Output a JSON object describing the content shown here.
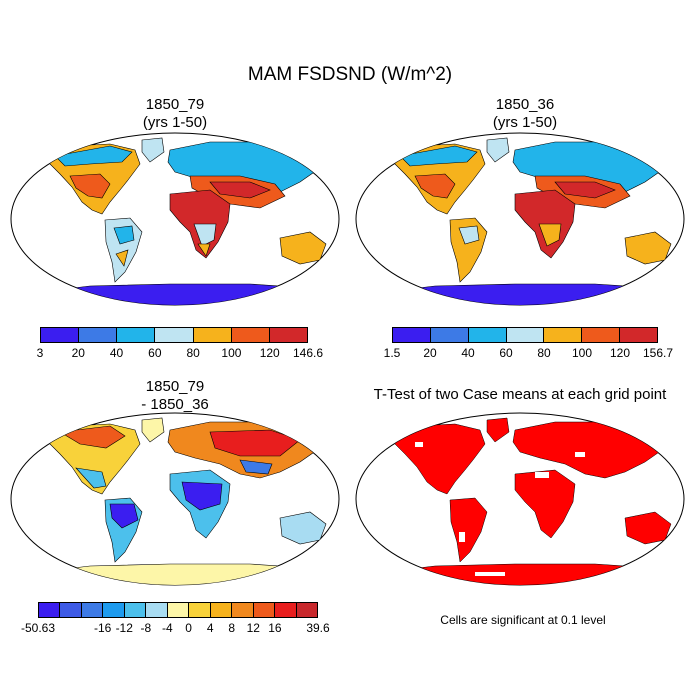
{
  "figure": {
    "title": "MAM FSDSND (W/m^2)"
  },
  "panels": [
    {
      "id": "tl",
      "title_line1": "1850_79",
      "title_line2": "(yrs 1-50)",
      "colorbar": {
        "colors": [
          "#3b1ef0",
          "#3d7ae6",
          "#22b4ea",
          "#bfe4f2",
          "#f6b21c",
          "#ee5a1c",
          "#d2282a"
        ],
        "labels": [
          "3",
          "20",
          "40",
          "60",
          "80",
          "100",
          "120",
          "146.6"
        ]
      }
    },
    {
      "id": "tr",
      "title_line1": "1850_36",
      "title_line2": "(yrs 1-50)",
      "colorbar": {
        "colors": [
          "#3b1ef0",
          "#3d7ae6",
          "#22b4ea",
          "#bfe4f2",
          "#f6b21c",
          "#ee5a1c",
          "#d2282a"
        ],
        "labels": [
          "1.5",
          "20",
          "40",
          "60",
          "80",
          "100",
          "120",
          "156.7"
        ]
      }
    },
    {
      "id": "bl",
      "title_line1": "1850_79",
      "title_line2": "- 1850_36",
      "colorbar": {
        "colors": [
          "#3b1ef0",
          "#3d5ae6",
          "#3d7ae6",
          "#1e9bef",
          "#4cc0ec",
          "#a8dcf2",
          "#fdf6a8",
          "#f8d23a",
          "#f6b21c",
          "#f0881e",
          "#ee5a1c",
          "#e81e1e",
          "#c8282c"
        ],
        "labels": [
          "-50.63",
          "-16",
          "-12",
          "-8",
          "-4",
          "0",
          "4",
          "8",
          "12",
          "16",
          "39.6"
        ]
      }
    },
    {
      "id": "br",
      "title_line1": "T-Test of two Case means at each grid point",
      "note": "Cells are significant at 0.1 level"
    }
  ]
}
